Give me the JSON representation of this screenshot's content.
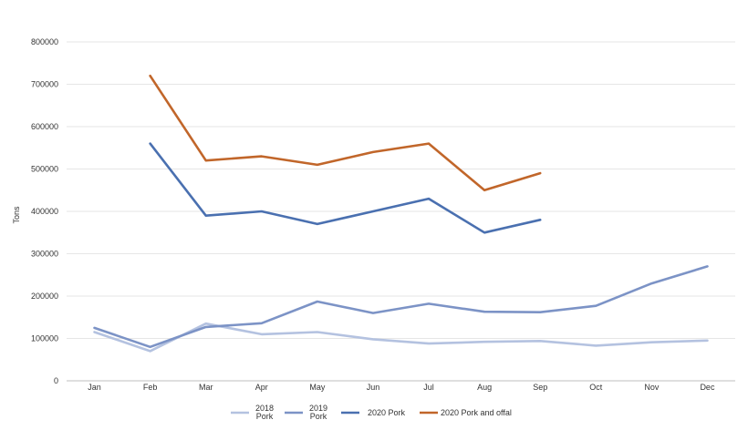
{
  "chart_data": {
    "type": "line",
    "ylabel": "Tons",
    "ylim": [
      0,
      800000
    ],
    "yticks": [
      0,
      100000,
      200000,
      300000,
      400000,
      500000,
      600000,
      700000,
      800000
    ],
    "grid": true,
    "legend_position": "bottom",
    "categories": [
      "Jan",
      "Feb",
      "Mar",
      "Apr",
      "May",
      "Jun",
      "Jul",
      "Aug",
      "Sep",
      "Oct",
      "Nov",
      "Dec"
    ],
    "series": [
      {
        "name": "2018 Pork",
        "legend_lines": [
          "2018",
          "Pork"
        ],
        "color": "#b4c2e0",
        "values": [
          115000,
          70000,
          135000,
          110000,
          115000,
          98000,
          88000,
          92000,
          94000,
          83000,
          91000,
          95000
        ]
      },
      {
        "name": "2019 Pork",
        "legend_lines": [
          "2019",
          "Pork"
        ],
        "color": "#7c93c6",
        "values": [
          125000,
          80000,
          127000,
          136000,
          187000,
          160000,
          182000,
          163000,
          162000,
          177000,
          230000,
          270000
        ]
      },
      {
        "name": "2020 Pork",
        "legend_lines": [
          "2020 Pork"
        ],
        "color": "#4a70b0",
        "values": [
          null,
          560000,
          390000,
          400000,
          370000,
          400000,
          430000,
          350000,
          380000,
          null,
          null,
          null
        ]
      },
      {
        "name": "2020 Pork and offal",
        "legend_lines": [
          "2020 Pork and offal"
        ],
        "color": "#c1662a",
        "values": [
          null,
          720000,
          520000,
          530000,
          510000,
          540000,
          560000,
          450000,
          490000,
          null,
          null,
          null
        ]
      }
    ]
  }
}
